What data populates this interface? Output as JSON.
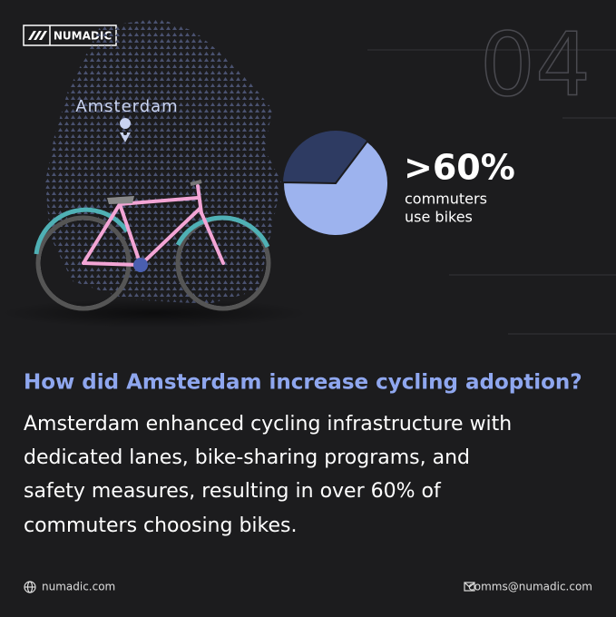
{
  "brand": "NUMADIC",
  "page_number": "04",
  "city": "Amsterdam",
  "chart_data": {
    "type": "pie",
    "values": [
      65
    ],
    "value_labels": [
      ">60%"
    ],
    "color": "#9db3ee",
    "rest_color": "#2e3b62",
    "caption": [
      "commuters",
      "use bikes"
    ]
  },
  "question": "How did Amsterdam increase cycling adoption?",
  "answer": [
    "Amsterdam enhanced cycling infrastructure with",
    "dedicated lanes, bike-sharing programs, and",
    "safety measures, resulting in over 60% of",
    "commuters choosing bikes."
  ],
  "footer": {
    "website": "numadic.com",
    "email": "comms@numadic.com"
  }
}
